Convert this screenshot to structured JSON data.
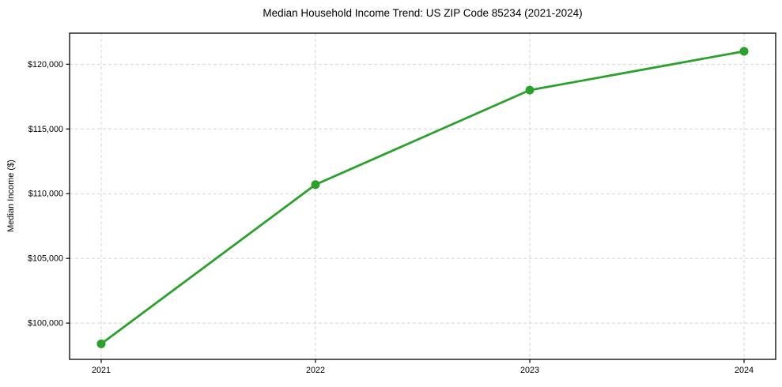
{
  "chart_data": {
    "type": "line",
    "title": "Median Household Income Trend: US ZIP Code 85234 (2021-2024)",
    "xlabel": "",
    "ylabel": "Median Income ($)",
    "categories": [
      "2021",
      "2022",
      "2023",
      "2024"
    ],
    "series": [
      {
        "name": "Median Household Income",
        "values": [
          98400,
          110700,
          118000,
          121000
        ]
      }
    ],
    "ylim": [
      97200,
      122400
    ],
    "yticks": [
      100000,
      105000,
      110000,
      115000,
      120000
    ],
    "ytick_labels": [
      "$100,000",
      "$105,000",
      "$110,000",
      "$115,000",
      "$120,000"
    ],
    "grid": "dashed-both-axes",
    "legend": "none",
    "line_color": "#2ca02c",
    "marker": "circle",
    "grid_color": "#d4d4d4",
    "axis_color": "#000000"
  }
}
